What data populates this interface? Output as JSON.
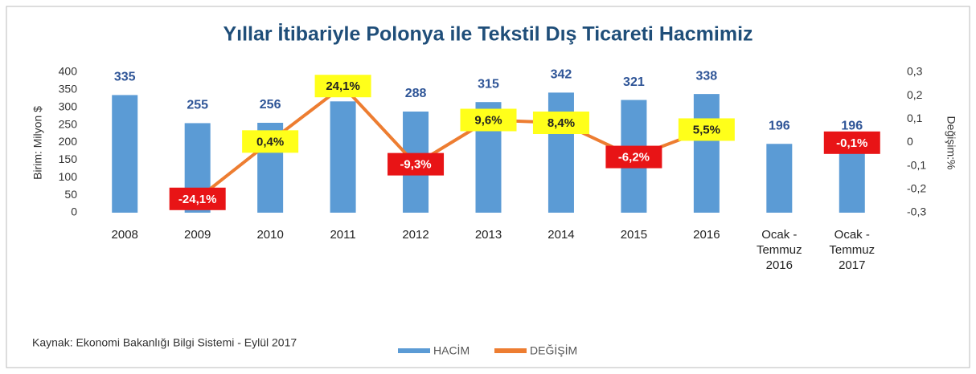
{
  "chart_data": {
    "type": "bar-line",
    "title": "Yıllar İtibariyle Polonya ile Tekstil Dış Ticareti Hacmimiz",
    "y_label": "Birim: Milyon $",
    "y2_label": "Değişim:%",
    "source": "Kaynak: Ekonomi Bakanlığı Bilgi Sistemi - Eylül 2017",
    "categories": [
      "2008",
      "2009",
      "2010",
      "2011",
      "2012",
      "2013",
      "2014",
      "2015",
      "2016",
      "Ocak - Temmuz 2016",
      "Ocak - Temmuz 2017"
    ],
    "series": [
      {
        "name": "HACİM",
        "type": "bar",
        "color": "#5b9bd5",
        "values": [
          335,
          255,
          256,
          317,
          288,
          315,
          342,
          321,
          338,
          196,
          196
        ]
      },
      {
        "name": "DEĞİŞİM",
        "type": "line",
        "axis": "y2",
        "color": "#ed7d31",
        "values": [
          null,
          -0.241,
          0.004,
          0.241,
          -0.093,
          0.096,
          0.084,
          -0.062,
          0.055,
          null,
          -0.001
        ],
        "value_labels": [
          null,
          "-24,1%",
          "0,4%",
          "24,1%",
          "-9,3%",
          "9,6%",
          "8,4%",
          "-6,2%",
          "5,5%",
          null,
          "-0,1%"
        ]
      }
    ],
    "ylim": [
      0,
      400
    ],
    "yticks": [
      0,
      50,
      100,
      150,
      200,
      250,
      300,
      350,
      400
    ],
    "y2lim": [
      -0.3,
      0.3
    ],
    "y2ticks": [
      {
        "value": -0.3,
        "label": "-0,3"
      },
      {
        "value": -0.2,
        "label": "-0,2"
      },
      {
        "value": -0.1,
        "label": "-0,1"
      },
      0,
      {
        "value": 0.1,
        "label": "0,1"
      },
      {
        "value": 0.2,
        "label": "0,2"
      },
      {
        "value": 0.3,
        "label": "0,3"
      }
    ],
    "grid": false,
    "legend": "bottom"
  }
}
